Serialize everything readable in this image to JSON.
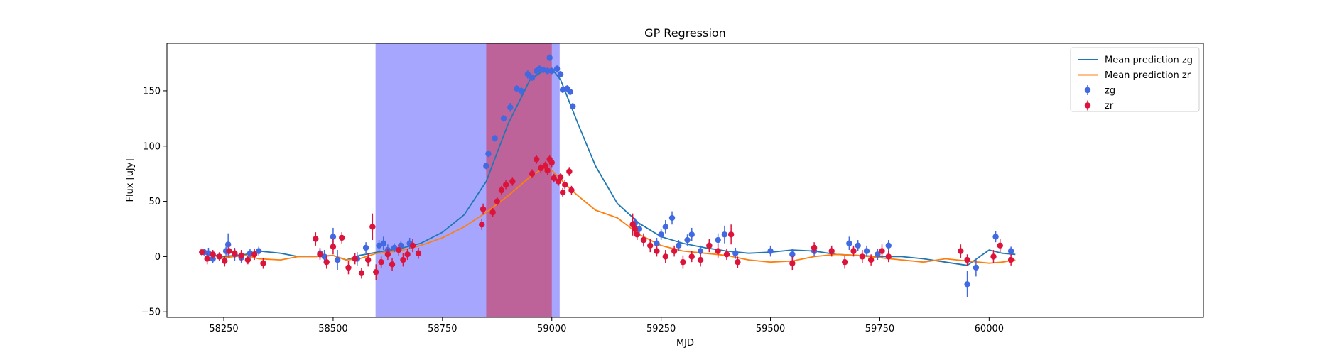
{
  "chart_data": {
    "type": "scatter",
    "title": "GP Regression",
    "xlabel": "MJD",
    "ylabel": "Flux [uJy]",
    "xlim": [
      58120,
      60490
    ],
    "ylim": [
      -55,
      193
    ],
    "xticks": [
      58250,
      58500,
      58750,
      59000,
      59250,
      59500,
      59750,
      60000
    ],
    "xtick_labels": [
      "58250",
      "58500",
      "58750",
      "59000",
      "59250",
      "59500",
      "59750",
      "60000"
    ],
    "yticks": [
      -50,
      0,
      50,
      100,
      150
    ],
    "ytick_labels": [
      "−50",
      "0",
      "50",
      "100",
      "150"
    ],
    "grid": false,
    "legend_position": "top-right",
    "shaded_regions": [
      {
        "x0": 58597,
        "x1": 59018,
        "color": "#0000ff",
        "opacity": 0.35
      },
      {
        "x0": 58850,
        "x1": 59000,
        "color": "#e00000",
        "opacity": 0.4
      }
    ],
    "series": [
      {
        "name": "Mean prediction zg",
        "kind": "line",
        "color": "#1f77b4",
        "x": [
          58200,
          58250,
          58300,
          58330,
          58380,
          58420,
          58460,
          58500,
          58530,
          58560,
          58600,
          58650,
          58700,
          58750,
          58800,
          58850,
          58900,
          58950,
          58980,
          59000,
          59020,
          59040,
          59060,
          59100,
          59150,
          59200,
          59250,
          59300,
          59350,
          59400,
          59450,
          59500,
          59550,
          59600,
          59650,
          59700,
          59750,
          59800,
          59850,
          59900,
          59950,
          60000,
          60030,
          60060
        ],
        "y": [
          3,
          0,
          2,
          5,
          3,
          0,
          0,
          1,
          -3,
          1,
          4,
          7,
          12,
          22,
          38,
          68,
          120,
          160,
          168,
          170,
          160,
          140,
          120,
          82,
          48,
          30,
          18,
          12,
          8,
          5,
          3,
          4,
          6,
          5,
          2,
          1,
          0,
          0,
          -2,
          -5,
          -8,
          6,
          3,
          2
        ]
      },
      {
        "name": "Mean prediction zr",
        "kind": "line",
        "color": "#ff7f0e",
        "x": [
          58200,
          58250,
          58300,
          58330,
          58380,
          58420,
          58460,
          58500,
          58530,
          58560,
          58600,
          58650,
          58700,
          58750,
          58800,
          58850,
          58900,
          58950,
          58980,
          59000,
          59020,
          59040,
          59060,
          59100,
          59150,
          59200,
          59250,
          59300,
          59350,
          59400,
          59450,
          59500,
          59550,
          59600,
          59650,
          59700,
          59750,
          59800,
          59850,
          59900,
          59950,
          60000,
          60030,
          60060
        ],
        "y": [
          3,
          -1,
          1,
          -2,
          -3,
          0,
          0,
          1,
          -3,
          -2,
          3,
          5,
          10,
          17,
          27,
          40,
          55,
          72,
          80,
          78,
          70,
          62,
          55,
          42,
          35,
          20,
          10,
          5,
          3,
          1,
          -3,
          -5,
          -4,
          0,
          2,
          1,
          -1,
          -3,
          -5,
          -2,
          -4,
          -6,
          -5,
          -3
        ]
      },
      {
        "name": "zg",
        "kind": "errorbar",
        "color": "#4169e1",
        "x": [
          58205,
          58215,
          58225,
          58240,
          58255,
          58260,
          58275,
          58290,
          58310,
          58330,
          58470,
          58480,
          58500,
          58510,
          58555,
          58575,
          58605,
          58615,
          58625,
          58640,
          58655,
          58675,
          58850,
          58855,
          58870,
          58890,
          58905,
          58920,
          58930,
          58945,
          58955,
          58965,
          58972,
          58980,
          58990,
          58995,
          59000,
          59012,
          59020,
          59025,
          59035,
          59042,
          59048,
          59190,
          59200,
          59210,
          59240,
          59250,
          59260,
          59275,
          59290,
          59310,
          59320,
          59340,
          59360,
          59380,
          59395,
          59420,
          59500,
          59550,
          59600,
          59680,
          59700,
          59720,
          59745,
          59770,
          59950,
          59970,
          60015,
          60050
        ],
        "y": [
          4,
          3,
          -2,
          0,
          5,
          11,
          2,
          -1,
          3,
          5,
          3,
          0,
          18,
          -3,
          -2,
          8,
          10,
          12,
          6,
          8,
          10,
          12,
          82,
          93,
          107,
          125,
          135,
          152,
          150,
          165,
          162,
          168,
          170,
          169,
          168,
          180,
          168,
          170,
          165,
          151,
          152,
          149,
          136,
          30,
          25,
          15,
          12,
          20,
          27,
          35,
          10,
          15,
          20,
          5,
          10,
          15,
          20,
          3,
          5,
          2,
          5,
          12,
          10,
          5,
          2,
          10,
          -25,
          -10,
          18,
          5
        ],
        "yerr": [
          3,
          5,
          4,
          3,
          4,
          10,
          6,
          5,
          4,
          4,
          5,
          6,
          8,
          9,
          6,
          5,
          5,
          6,
          5,
          4,
          4,
          5,
          3,
          3,
          3,
          3,
          4,
          3,
          4,
          4,
          3,
          3,
          3,
          3,
          3,
          3,
          3,
          3,
          3,
          3,
          3,
          3,
          3,
          5,
          5,
          6,
          5,
          5,
          6,
          6,
          5,
          5,
          6,
          5,
          5,
          6,
          8,
          5,
          5,
          5,
          5,
          6,
          5,
          5,
          5,
          5,
          12,
          8,
          5,
          4
        ]
      },
      {
        "name": "zr",
        "kind": "errorbar",
        "color": "#dc143c",
        "x": [
          58200,
          58212,
          58225,
          58240,
          58252,
          58262,
          58275,
          58290,
          58305,
          58320,
          58340,
          58460,
          58470,
          58485,
          58500,
          58520,
          58535,
          58550,
          58565,
          58580,
          58590,
          58598,
          58610,
          58625,
          58635,
          58650,
          58660,
          58670,
          58682,
          58695,
          58840,
          58843,
          58865,
          58875,
          58885,
          58895,
          58910,
          58955,
          58965,
          58975,
          58985,
          58990,
          58995,
          59000,
          59005,
          59015,
          59020,
          59025,
          59030,
          59040,
          59045,
          59185,
          59190,
          59195,
          59210,
          59225,
          59240,
          59260,
          59280,
          59300,
          59320,
          59340,
          59360,
          59380,
          59400,
          59410,
          59425,
          59550,
          59600,
          59640,
          59670,
          59690,
          59710,
          59730,
          59755,
          59770,
          59935,
          59950,
          60010,
          60025,
          60050
        ],
        "y": [
          4,
          -2,
          2,
          0,
          -4,
          5,
          3,
          1,
          -3,
          2,
          -6,
          16,
          2,
          -5,
          9,
          17,
          -10,
          -2,
          -15,
          -3,
          27,
          -14,
          -5,
          2,
          -7,
          6,
          -3,
          2,
          10,
          3,
          29,
          43,
          40,
          50,
          60,
          65,
          68,
          75,
          88,
          80,
          82,
          78,
          88,
          85,
          71,
          68,
          72,
          58,
          65,
          77,
          60,
          29,
          25,
          20,
          15,
          10,
          5,
          0,
          5,
          -5,
          0,
          -3,
          10,
          5,
          2,
          20,
          -5,
          -6,
          8,
          5,
          -5,
          5,
          0,
          -3,
          5,
          0,
          5,
          -3,
          0,
          10,
          -3
        ],
        "yerr": [
          3,
          5,
          4,
          4,
          5,
          6,
          4,
          5,
          4,
          5,
          5,
          6,
          5,
          6,
          7,
          5,
          6,
          5,
          5,
          6,
          12,
          7,
          5,
          5,
          6,
          5,
          6,
          5,
          6,
          5,
          5,
          5,
          4,
          4,
          4,
          4,
          4,
          4,
          4,
          4,
          4,
          4,
          4,
          4,
          4,
          4,
          4,
          4,
          4,
          4,
          4,
          10,
          6,
          5,
          5,
          6,
          5,
          6,
          5,
          6,
          5,
          6,
          6,
          6,
          5,
          9,
          5,
          6,
          5,
          5,
          6,
          5,
          6,
          5,
          6,
          5,
          6,
          5,
          6,
          6,
          5
        ]
      }
    ]
  }
}
